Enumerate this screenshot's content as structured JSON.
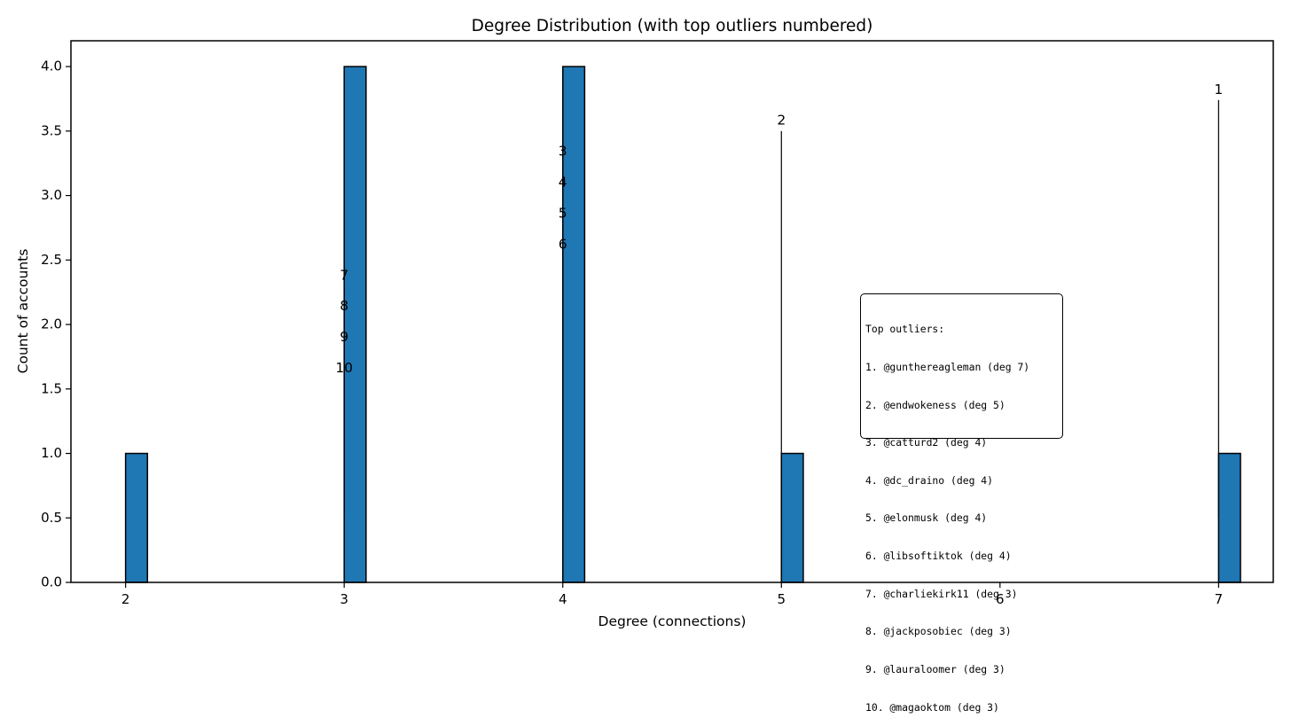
{
  "chart_data": {
    "type": "bar",
    "title": "Degree Distribution (with top outliers numbered)",
    "xlabel": "Degree (connections)",
    "ylabel": "Count of accounts",
    "xlim": [
      1.75,
      7.25
    ],
    "ylim": [
      0,
      4.2
    ],
    "x_ticks": [
      2,
      3,
      4,
      5,
      6,
      7
    ],
    "y_ticks": [
      "0.0",
      "0.5",
      "1.0",
      "1.5",
      "2.0",
      "2.5",
      "3.0",
      "3.5",
      "4.0"
    ],
    "bar_color": "#1f77b4",
    "bars": [
      {
        "degree": 2,
        "count": 1
      },
      {
        "degree": 3,
        "count": 4
      },
      {
        "degree": 4,
        "count": 4
      },
      {
        "degree": 5,
        "count": 1
      },
      {
        "degree": 7,
        "count": 1
      }
    ],
    "outlier_markers": [
      {
        "label": "1",
        "degree": 7,
        "y": 3.82
      },
      {
        "label": "2",
        "degree": 5,
        "y": 3.58
      },
      {
        "label": "3",
        "degree": 4,
        "y": 3.34
      },
      {
        "label": "4",
        "degree": 4,
        "y": 3.1
      },
      {
        "label": "5",
        "degree": 4,
        "y": 2.86
      },
      {
        "label": "6",
        "degree": 4,
        "y": 2.62
      },
      {
        "label": "7",
        "degree": 3,
        "y": 2.38
      },
      {
        "label": "8",
        "degree": 3,
        "y": 2.14
      },
      {
        "label": "9",
        "degree": 3,
        "y": 1.9
      },
      {
        "label": "10",
        "degree": 3,
        "y": 1.66
      }
    ],
    "outlier_lines": [
      {
        "degree": 7,
        "y_from": 0.5,
        "y_to": 3.74
      },
      {
        "degree": 5,
        "y_from": 0.5,
        "y_to": 3.5
      },
      {
        "degree": 4,
        "y_from": 0.5,
        "y_to": 3.26
      },
      {
        "degree": 3,
        "y_from": 0.5,
        "y_to": 2.3
      }
    ],
    "grid": false,
    "legend": "none"
  },
  "outlier_box": {
    "title": "Top outliers:",
    "items": [
      "1. @gunthereagleman (deg 7)",
      "2. @endwokeness (deg 5)",
      "3. @catturd2 (deg 4)",
      "4. @dc_draino (deg 4)",
      "5. @elonmusk (deg 4)",
      "6. @libsoftiktok (deg 4)",
      "7. @charliekirk11 (deg 3)",
      "8. @jackposobiec (deg 3)",
      "9. @lauraloomer (deg 3)",
      "10. @magaoktom (deg 3)"
    ]
  }
}
